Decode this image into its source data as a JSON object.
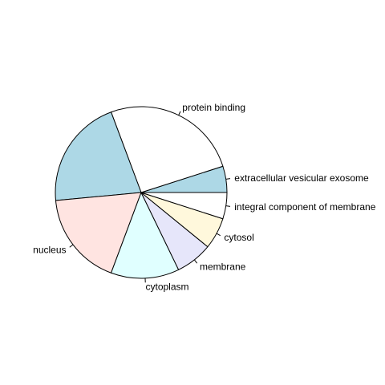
{
  "chart_data": {
    "type": "pie",
    "title": "",
    "start_angle_deg": 0,
    "direction": "counterclockwise",
    "slices": [
      {
        "label": "extracellular vesicular exosome",
        "value": 5.0,
        "color": "#ADD8E6"
      },
      {
        "label": "protein binding",
        "value": 26.0,
        "color": "#FFFFFF"
      },
      {
        "label": "",
        "value": 21.0,
        "color": "#ADD8E6"
      },
      {
        "label": "nucleus",
        "value": 18.0,
        "color": "#FFE4E1"
      },
      {
        "label": "cytoplasm",
        "value": 13.0,
        "color": "#E0FFFF"
      },
      {
        "label": "membrane",
        "value": 7.0,
        "color": "#E6E6FA"
      },
      {
        "label": "cytosol",
        "value": 6.0,
        "color": "#FFF8DC"
      },
      {
        "label": "integral component of membrane",
        "value": 5.0,
        "color": "#FFFFFF"
      }
    ]
  }
}
